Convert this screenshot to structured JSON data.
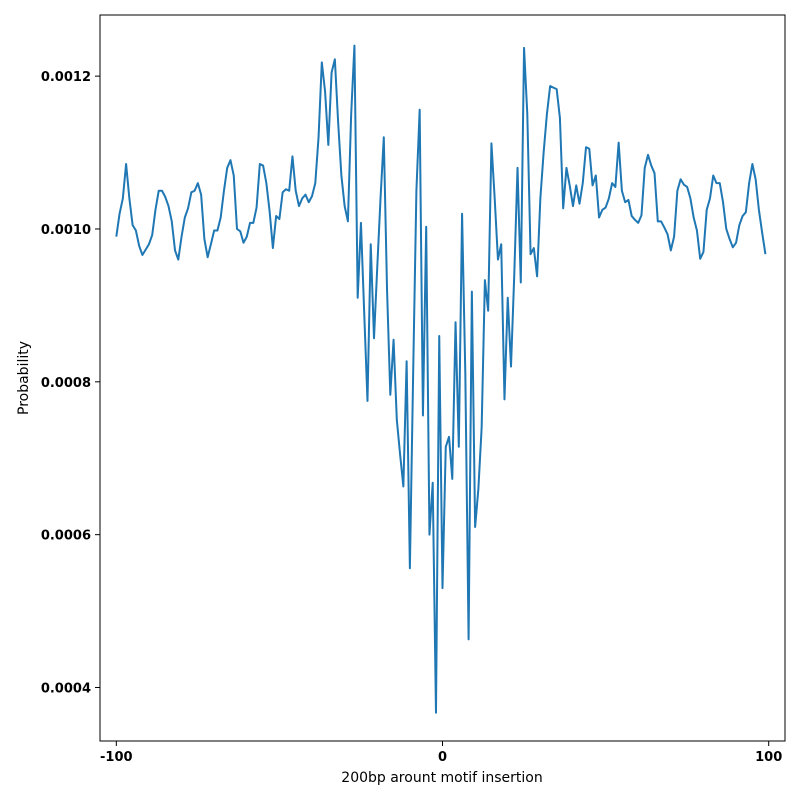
{
  "chart_data": {
    "type": "line",
    "title": "",
    "xlabel": "200bp arount motif insertion",
    "ylabel": "Probability",
    "xlim": [
      -105,
      105
    ],
    "ylim": [
      0.00033,
      0.00128
    ],
    "xticks": [
      -100,
      0,
      100
    ],
    "xtick_labels": [
      "-100",
      "0",
      "100"
    ],
    "yticks": [
      0.0004,
      0.0006,
      0.0008,
      0.001,
      0.0012
    ],
    "ytick_labels": [
      "0.0004",
      "0.0006",
      "0.0008",
      "0.0010",
      "0.0012"
    ],
    "grid": false,
    "legend": "none",
    "series": [
      {
        "color": "#1f77b4",
        "x": [
          -100,
          -99,
          -98,
          -97,
          -96,
          -95,
          -94,
          -93,
          -92,
          -91,
          -90,
          -89,
          -88,
          -87,
          -86,
          -85,
          -84,
          -83,
          -82,
          -81,
          -80,
          -79,
          -78,
          -77,
          -76,
          -75,
          -74,
          -73,
          -72,
          -71,
          -70,
          -69,
          -68,
          -67,
          -66,
          -65,
          -64,
          -63,
          -62,
          -61,
          -60,
          -59,
          -58,
          -57,
          -56,
          -55,
          -54,
          -53,
          -52,
          -51,
          -50,
          -49,
          -48,
          -47,
          -46,
          -45,
          -44,
          -43,
          -42,
          -41,
          -40,
          -39,
          -38,
          -37,
          -36,
          -35,
          -34,
          -33,
          -32,
          -31,
          -30,
          -29,
          -28,
          -27,
          -26,
          -25,
          -24,
          -23,
          -22,
          -21,
          -20,
          -19,
          -18,
          -17,
          -16,
          -15,
          -14,
          -13,
          -12,
          -11,
          -10,
          -9,
          -8,
          -7,
          -6,
          -5,
          -4,
          -3,
          -2,
          -1,
          0,
          1,
          2,
          3,
          4,
          5,
          6,
          7,
          8,
          9,
          10,
          11,
          12,
          13,
          14,
          15,
          16,
          17,
          18,
          19,
          20,
          21,
          22,
          23,
          24,
          25,
          26,
          27,
          28,
          29,
          30,
          31,
          32,
          33,
          34,
          35,
          36,
          37,
          38,
          39,
          40,
          41,
          42,
          43,
          44,
          45,
          46,
          47,
          48,
          49,
          50,
          51,
          52,
          53,
          54,
          55,
          56,
          57,
          58,
          59,
          60,
          61,
          62,
          63,
          64,
          65,
          66,
          67,
          68,
          69,
          70,
          71,
          72,
          73,
          74,
          75,
          76,
          77,
          78,
          79,
          80,
          81,
          82,
          83,
          84,
          85,
          86,
          87,
          88,
          89,
          90,
          91,
          92,
          93,
          94,
          95,
          96,
          97,
          98,
          99
        ],
        "y": [
          0.00099,
          0.00102,
          0.00104,
          0.001085,
          0.00104,
          0.001005,
          0.000998,
          0.000978,
          0.000966,
          0.000973,
          0.00098,
          0.000992,
          0.001025,
          0.00105,
          0.00105,
          0.001042,
          0.00103,
          0.00101,
          0.000972,
          0.00096,
          0.00099,
          0.001015,
          0.001027,
          0.001048,
          0.00105,
          0.00106,
          0.001045,
          0.000987,
          0.000963,
          0.00098,
          0.000998,
          0.000998,
          0.001015,
          0.00105,
          0.00108,
          0.00109,
          0.00107,
          0.001,
          0.000997,
          0.000982,
          0.00099,
          0.001008,
          0.001008,
          0.001028,
          0.001085,
          0.001083,
          0.00106,
          0.001023,
          0.000975,
          0.001017,
          0.001013,
          0.001048,
          0.001052,
          0.00105,
          0.001095,
          0.00105,
          0.00103,
          0.00104,
          0.001045,
          0.001035,
          0.001043,
          0.00106,
          0.00112,
          0.001218,
          0.00118,
          0.00111,
          0.001205,
          0.001222,
          0.00114,
          0.00107,
          0.00103,
          0.00101,
          0.00115,
          0.00124,
          0.00091,
          0.001008,
          0.00089,
          0.000775,
          0.00098,
          0.000857,
          0.00095,
          0.00104,
          0.00112,
          0.00092,
          0.000783,
          0.000855,
          0.00075,
          0.000705,
          0.000663,
          0.000827,
          0.000556,
          0.00081,
          0.00105,
          0.001156,
          0.000756,
          0.001003,
          0.0006,
          0.000668,
          0.000367,
          0.00086,
          0.00053,
          0.000715,
          0.000728,
          0.000673,
          0.000878,
          0.000715,
          0.00102,
          0.00081,
          0.000463,
          0.000918,
          0.00061,
          0.00066,
          0.00074,
          0.000933,
          0.000893,
          0.001112,
          0.00104,
          0.00096,
          0.00098,
          0.000777,
          0.00091,
          0.00082,
          0.00094,
          0.00108,
          0.00093,
          0.001237,
          0.00115,
          0.000967,
          0.000975,
          0.000938,
          0.00104,
          0.0011,
          0.00115,
          0.001187,
          0.001185,
          0.001183,
          0.001145,
          0.001027,
          0.00108,
          0.001057,
          0.00103,
          0.001057,
          0.001033,
          0.00106,
          0.001107,
          0.001105,
          0.001057,
          0.00107,
          0.001015,
          0.001025,
          0.001028,
          0.00104,
          0.00106,
          0.001055,
          0.001113,
          0.00105,
          0.001035,
          0.001038,
          0.001017,
          0.001012,
          0.001008,
          0.001018,
          0.00108,
          0.001097,
          0.001083,
          0.001073,
          0.00101,
          0.00101,
          0.001002,
          0.000993,
          0.000972,
          0.00099,
          0.00105,
          0.001065,
          0.001058,
          0.001055,
          0.00104,
          0.001015,
          0.000998,
          0.000961,
          0.00097,
          0.001025,
          0.00104,
          0.00107,
          0.00106,
          0.00106,
          0.001035,
          0.001,
          0.000987,
          0.000976,
          0.000982,
          0.001005,
          0.001017,
          0.001022,
          0.00106,
          0.001085,
          0.001065,
          0.001025,
          0.000995,
          0.000967
        ]
      }
    ]
  }
}
